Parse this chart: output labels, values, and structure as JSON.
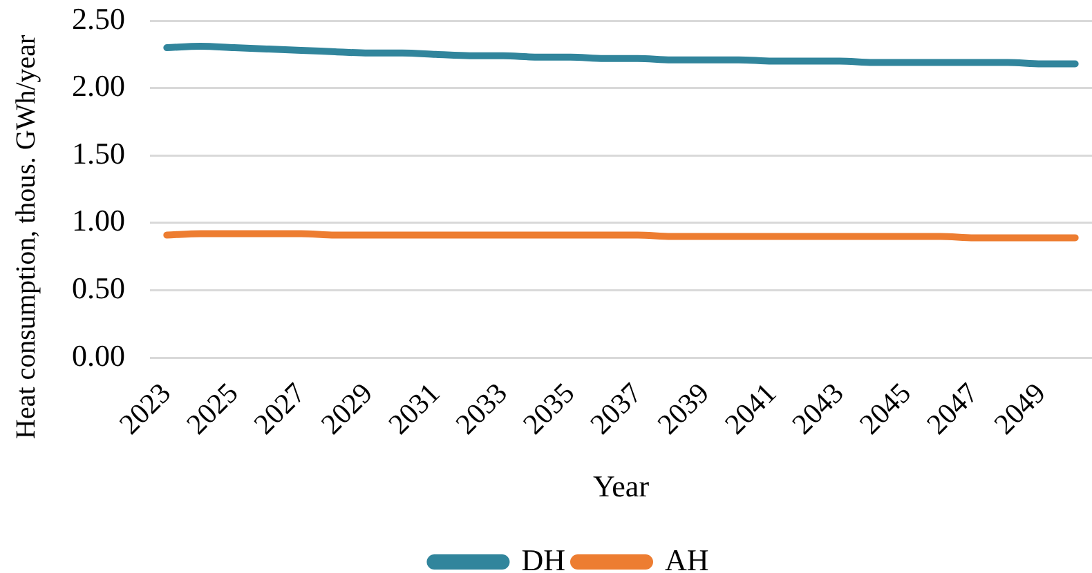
{
  "chart_data": {
    "type": "line",
    "categories": [
      "2023",
      null,
      "2025",
      null,
      "2027",
      null,
      "2029",
      null,
      "2031",
      null,
      "2033",
      null,
      "2035",
      null,
      "2037",
      null,
      "2039",
      null,
      "2041",
      null,
      "2043",
      null,
      "2045",
      null,
      "2047",
      null,
      "2049",
      null
    ],
    "series": [
      {
        "name": "DH",
        "color": "#31859c",
        "values": [
          2.3,
          2.31,
          2.3,
          2.29,
          2.28,
          2.27,
          2.26,
          2.26,
          2.25,
          2.24,
          2.24,
          2.23,
          2.23,
          2.22,
          2.22,
          2.21,
          2.21,
          2.21,
          2.2,
          2.2,
          2.2,
          2.19,
          2.19,
          2.19,
          2.19,
          2.19,
          2.18,
          2.18
        ]
      },
      {
        "name": "AH",
        "color": "#ed7d31",
        "values": [
          0.91,
          0.92,
          0.92,
          0.92,
          0.92,
          0.91,
          0.91,
          0.91,
          0.91,
          0.91,
          0.91,
          0.91,
          0.91,
          0.91,
          0.91,
          0.9,
          0.9,
          0.9,
          0.9,
          0.9,
          0.9,
          0.9,
          0.9,
          0.9,
          0.89,
          0.89,
          0.89,
          0.89
        ]
      }
    ],
    "xlabel": "Year",
    "ylabel": "Heat consumption, thous. GWh/year",
    "ylim": [
      0,
      2.5
    ],
    "yticks": [
      {
        "value": 0,
        "label": "0.00"
      },
      {
        "value": 0.5,
        "label": "0.50"
      },
      {
        "value": 1,
        "label": "1.00"
      },
      {
        "value": 1.5,
        "label": "1.50"
      },
      {
        "value": 2,
        "label": "2.00"
      },
      {
        "value": 2.5,
        "label": "2.50"
      }
    ],
    "grid": "y",
    "legend": "bottom",
    "marker": "none",
    "line_style": "solid"
  }
}
